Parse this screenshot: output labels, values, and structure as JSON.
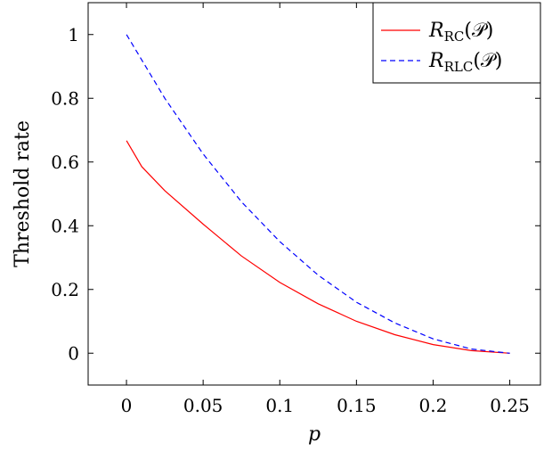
{
  "chart_data": {
    "type": "line",
    "xlabel": "p",
    "ylabel": "Threshold rate",
    "xlim": [
      -0.025,
      0.27
    ],
    "ylim": [
      -0.1,
      1.1
    ],
    "xticks": [
      0,
      0.05,
      0.1,
      0.15,
      0.2,
      0.25
    ],
    "xtick_labels": [
      "0",
      "0.05",
      "0.1",
      "0.15",
      "0.2",
      "0.25"
    ],
    "yticks": [
      0,
      0.2,
      0.4,
      0.6,
      0.8,
      1
    ],
    "ytick_labels": [
      "0",
      "0.2",
      "0.4",
      "0.6",
      "0.8",
      "1"
    ],
    "grid": false,
    "legend_position": "top-right",
    "series": [
      {
        "name": "R_RC(P)",
        "legend_main": "R",
        "legend_sub": "RC",
        "legend_tail": "(𝒫)",
        "color": "#ff0000",
        "dash": "solid",
        "x": [
          0,
          0.01,
          0.025,
          0.05,
          0.075,
          0.1,
          0.125,
          0.15,
          0.175,
          0.2,
          0.225,
          0.25
        ],
        "y": [
          0.667,
          0.585,
          0.51,
          0.405,
          0.305,
          0.222,
          0.155,
          0.1,
          0.058,
          0.027,
          0.008,
          0
        ]
      },
      {
        "name": "R_RLC(P)",
        "legend_main": "R",
        "legend_sub": "RLC",
        "legend_tail": "(𝒫)",
        "color": "#0000ff",
        "dash": "dashed",
        "x": [
          0,
          0.025,
          0.05,
          0.075,
          0.1,
          0.125,
          0.15,
          0.175,
          0.2,
          0.225,
          0.25
        ],
        "y": [
          1,
          0.8,
          0.625,
          0.475,
          0.35,
          0.245,
          0.16,
          0.095,
          0.045,
          0.013,
          0
        ]
      }
    ]
  }
}
